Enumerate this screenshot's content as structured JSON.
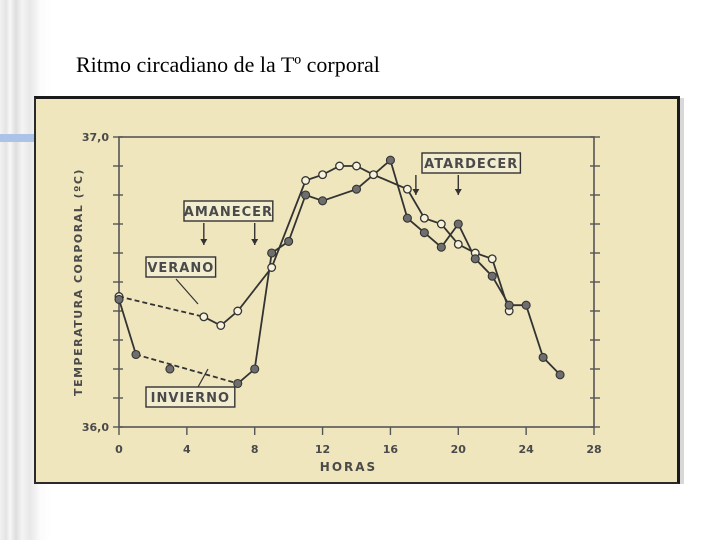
{
  "slide": {
    "title": "Ritmo circadiano de la Tº corporal"
  },
  "chart_data": {
    "type": "line",
    "title": "",
    "xlabel": "HORAS",
    "ylabel": "TEMPERATURA CORPORAL (ºC)",
    "xlim": [
      0,
      28
    ],
    "ylim": [
      36.0,
      37.0
    ],
    "x_ticks": [
      "0",
      "4",
      "8",
      "12",
      "16",
      "20",
      "24",
      "28"
    ],
    "y_ticks": [
      "36,0",
      "37,0"
    ],
    "series": [
      {
        "name": "VERANO",
        "marker": "open",
        "points": [
          [
            0,
            36.45
          ],
          [
            5,
            36.38
          ],
          [
            6,
            36.35
          ],
          [
            7,
            36.4
          ],
          [
            9,
            36.55
          ],
          [
            11,
            36.85
          ],
          [
            12,
            36.87
          ],
          [
            13,
            36.9
          ],
          [
            14,
            36.9
          ],
          [
            15,
            36.87
          ],
          [
            17,
            36.82
          ],
          [
            18,
            36.72
          ],
          [
            19,
            36.7
          ],
          [
            20,
            36.63
          ],
          [
            21,
            36.6
          ],
          [
            22,
            36.58
          ],
          [
            23,
            36.4
          ]
        ]
      },
      {
        "name": "INVIERNO",
        "marker": "filled",
        "points": [
          [
            0,
            36.44
          ],
          [
            1,
            36.25
          ],
          [
            3,
            36.2
          ],
          [
            7,
            36.15
          ],
          [
            8,
            36.2
          ],
          [
            9,
            36.6
          ],
          [
            10,
            36.64
          ],
          [
            11,
            36.8
          ],
          [
            12,
            36.78
          ],
          [
            14,
            36.82
          ],
          [
            16,
            36.92
          ],
          [
            17,
            36.72
          ],
          [
            18,
            36.67
          ],
          [
            19,
            36.62
          ],
          [
            20,
            36.7
          ],
          [
            21,
            36.58
          ],
          [
            22,
            36.52
          ],
          [
            23,
            36.42
          ],
          [
            24,
            36.42
          ],
          [
            25,
            36.24
          ],
          [
            26,
            36.18
          ]
        ]
      }
    ],
    "annotations": [
      {
        "text": "AMANECER",
        "arrows_at_x": [
          5,
          8
        ]
      },
      {
        "text": "ATARDECER",
        "arrows_at_x": [
          17.5,
          20
        ]
      },
      {
        "text": "VERANO",
        "points_to": "VERANO"
      },
      {
        "text": "INVIERNO",
        "points_to": "INVIERNO"
      }
    ]
  }
}
